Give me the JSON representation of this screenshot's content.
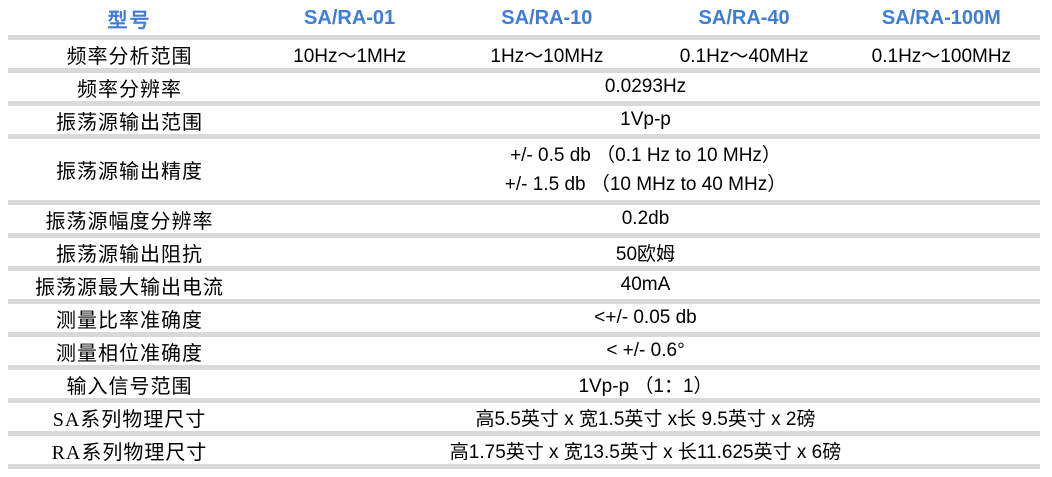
{
  "colors": {
    "header_text": "#3E7CD5",
    "separator": "#D9D9D9",
    "body_text": "#000000",
    "background": "#FFFFFF"
  },
  "table": {
    "header": {
      "model_label": "型号",
      "models": [
        "SA/RA-01",
        "SA/RA-10",
        "SA/RA-40",
        "SA/RA-100M"
      ]
    },
    "rows": [
      {
        "label": "频率分析范围",
        "values": [
          "10Hz～1MHz",
          "1Hz～10MHz",
          "0.1Hz～40MHz",
          "0.1Hz～100MHz"
        ]
      },
      {
        "label": "频率分辨率",
        "merged": "0.0293Hz"
      },
      {
        "label": "振荡源输出范围",
        "merged": "1Vp-p"
      },
      {
        "label": "振荡源输出精度",
        "merged_lines": [
          "+/- 0.5 db （0.1 Hz to 10 MHz）",
          "+/- 1.5 db （10 MHz to 40 MHz）"
        ]
      },
      {
        "label": "振荡源幅度分辨率",
        "merged": "0.2db"
      },
      {
        "label": "振荡源输出阻抗",
        "merged": "50欧姆"
      },
      {
        "label": "振荡源最大输出电流",
        "merged": "40mA"
      },
      {
        "label": "测量比率准确度",
        "merged": "<+/- 0.05 db"
      },
      {
        "label": "测量相位准确度",
        "merged": "< +/- 0.6°"
      },
      {
        "label": "输入信号范围",
        "merged": "1Vp-p （1：1）"
      },
      {
        "label": "SA系列物理尺寸",
        "merged": "高5.5英寸 x 宽1.5英寸 x长 9.5英寸 x 2磅"
      },
      {
        "label": "RA系列物理尺寸",
        "merged": "高1.75英寸 x 宽13.5英寸 x 长11.625英寸 x 6磅"
      }
    ]
  }
}
